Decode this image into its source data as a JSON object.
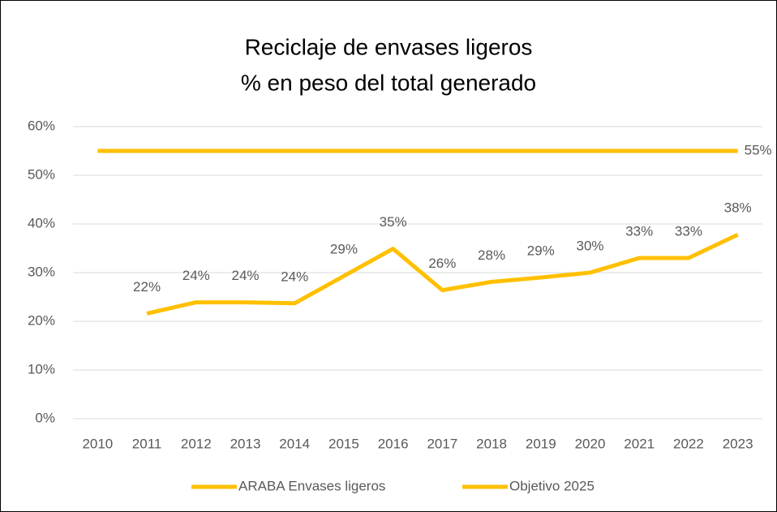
{
  "chart_data": {
    "type": "line",
    "title": "Reciclaje de envases ligeros",
    "subtitle": "% en peso del total generado",
    "categories": [
      "2010",
      "2011",
      "2012",
      "2013",
      "2014",
      "2015",
      "2016",
      "2017",
      "2018",
      "2019",
      "2020",
      "2021",
      "2022",
      "2023"
    ],
    "series": [
      {
        "name": "ARABA Envases ligeros",
        "color": "#ffc000",
        "values": [
          null,
          21.6,
          23.9,
          23.9,
          23.7,
          29.3,
          34.9,
          26.4,
          28.1,
          29.0,
          30.0,
          33.0,
          33.0,
          37.8
        ],
        "value_labels": [
          null,
          "22%",
          "24%",
          "24%",
          "24%",
          "29%",
          "35%",
          "26%",
          "28%",
          "29%",
          "30%",
          "33%",
          "33%",
          "38%"
        ]
      },
      {
        "name": "Objetivo 2025",
        "color": "#ffc000",
        "values": [
          55,
          55,
          55,
          55,
          55,
          55,
          55,
          55,
          55,
          55,
          55,
          55,
          55,
          55
        ],
        "value_labels": [
          null,
          null,
          null,
          null,
          null,
          null,
          null,
          null,
          null,
          null,
          null,
          null,
          null,
          "55%"
        ]
      }
    ],
    "ylim": [
      0,
      60
    ],
    "yticks": [
      {
        "value": 0,
        "label": "0%"
      },
      {
        "value": 10,
        "label": "10%"
      },
      {
        "value": 20,
        "label": "20%"
      },
      {
        "value": 30,
        "label": "30%"
      },
      {
        "value": 40,
        "label": "40%"
      },
      {
        "value": 50,
        "label": "50%"
      },
      {
        "value": 60,
        "label": "60%"
      }
    ],
    "grid": true,
    "legend": "bottom"
  }
}
